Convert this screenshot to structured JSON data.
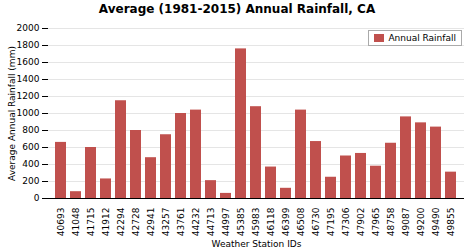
{
  "chart_data": {
    "type": "bar",
    "title": "Average (1981-2015)  Annual Rainfall, CA",
    "xlabel": "Weather Station IDs",
    "ylabel": "Average Annual Rainfall (mm)",
    "categories": [
      "40693",
      "41048",
      "41715",
      "41912",
      "42294",
      "42728",
      "42941",
      "43257",
      "43761",
      "44232",
      "44713",
      "44997",
      "45385",
      "45983",
      "46118",
      "46399",
      "46508",
      "46730",
      "47195",
      "47306",
      "47902",
      "47965",
      "48758",
      "49087",
      "49200",
      "49490",
      "49855"
    ],
    "series": [
      {
        "name": "Annual Rainfall",
        "color": "#C0504D",
        "values": [
          660,
          80,
          600,
          230,
          1150,
          800,
          480,
          750,
          1000,
          1040,
          210,
          60,
          1760,
          1080,
          370,
          120,
          1040,
          670,
          250,
          500,
          530,
          380,
          650,
          960,
          890,
          840,
          310
        ]
      }
    ],
    "ylim": [
      0,
      2000
    ],
    "yticks": [
      0,
      200,
      400,
      600,
      800,
      1000,
      1200,
      1400,
      1600,
      1800,
      2000
    ],
    "grid": true,
    "legend": "upper right"
  }
}
